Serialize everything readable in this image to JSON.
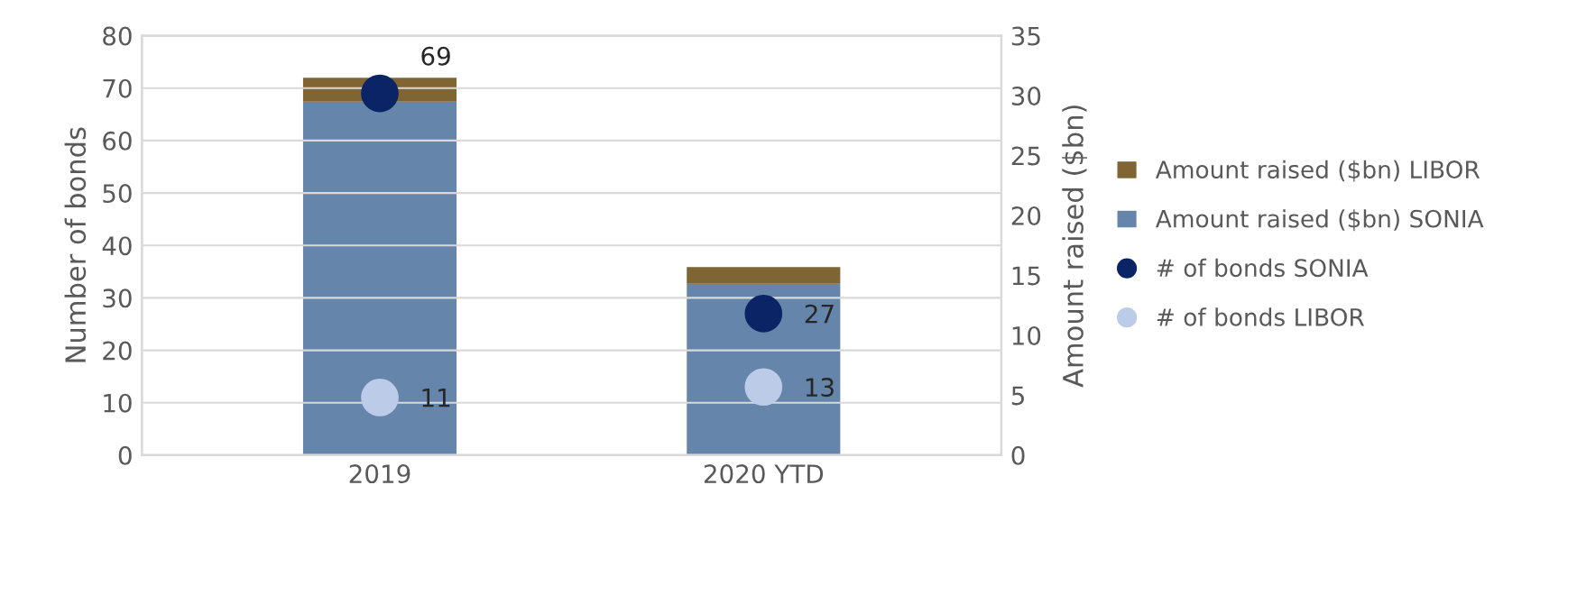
{
  "chart_data": {
    "type": "bar",
    "categories": [
      "2019",
      "2020 YTD"
    ],
    "stacked": true,
    "series": [
      {
        "name": "Amount raised ($bn) SONIA",
        "color": "#6585ab",
        "values": [
          29.5,
          14.3
        ],
        "axis": "y2"
      },
      {
        "name": "Amount raised ($bn) LIBOR",
        "color": "#7f6434",
        "values": [
          2.0,
          1.4
        ],
        "axis": "y2"
      },
      {
        "name": "# of bonds SONIA",
        "type": "scatter",
        "color": "#0b2465",
        "values": [
          69,
          27
        ],
        "value_labels": [
          "69",
          "27"
        ]
      },
      {
        "name": "# of bonds LIBOR",
        "type": "scatter",
        "color": "#bccbe8",
        "values": [
          11,
          13
        ],
        "value_labels": [
          "11",
          "13"
        ]
      }
    ],
    "ylabel": "Number of bonds",
    "y2label": "Amount raised ($bn)",
    "ylim": [
      0,
      80
    ],
    "yticks": [
      0,
      10,
      20,
      30,
      40,
      50,
      60,
      70,
      80
    ],
    "y2lim": [
      0,
      35
    ],
    "y2ticks": [
      0,
      5,
      10,
      15,
      20,
      25,
      30,
      35
    ],
    "grid": "y",
    "legend": "right",
    "marker": "circle"
  }
}
